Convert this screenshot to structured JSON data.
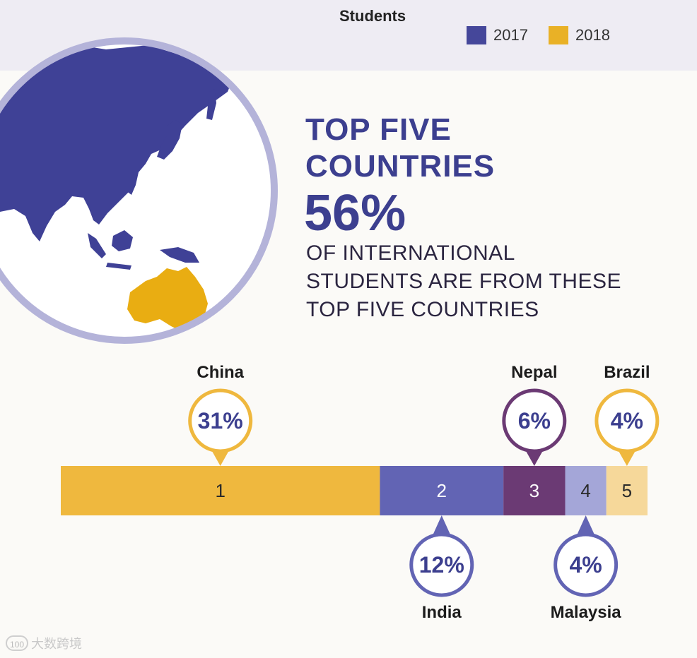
{
  "header": {
    "title": "Students",
    "legend": [
      {
        "label": "2017",
        "color": "#45479a"
      },
      {
        "label": "2018",
        "color": "#e9b126"
      }
    ]
  },
  "headline": {
    "line1": "TOP FIVE",
    "line2": "COUNTRIES",
    "percent": "56%",
    "desc_line1": "OF INTERNATIONAL",
    "desc_line2": "STUDENTS ARE FROM THESE",
    "desc_line3": "TOP FIVE COUNTRIES"
  },
  "colors": {
    "china": "#efb83e",
    "india": "#6264b4",
    "nepal": "#6b3a74",
    "malaysia": "#a4a6d8",
    "brazil": "#f6d89a",
    "map_land": "#3f4196",
    "australia": "#e9ad12",
    "globe_ring": "#b4b3d9"
  },
  "chart_data": {
    "type": "bar",
    "title": "",
    "stacked": true,
    "orientation": "horizontal",
    "categories": [
      "China",
      "India",
      "Nepal",
      "Malaysia",
      "Brazil"
    ],
    "ranks": [
      "1",
      "2",
      "3",
      "4",
      "5"
    ],
    "values": [
      31,
      12,
      6,
      4,
      4
    ],
    "value_labels": [
      "31%",
      "12%",
      "6%",
      "4%",
      "4%"
    ],
    "callout_side": [
      "top",
      "bottom",
      "top",
      "bottom",
      "top"
    ]
  },
  "watermark": {
    "icon": "100",
    "text": "大数跨境"
  }
}
